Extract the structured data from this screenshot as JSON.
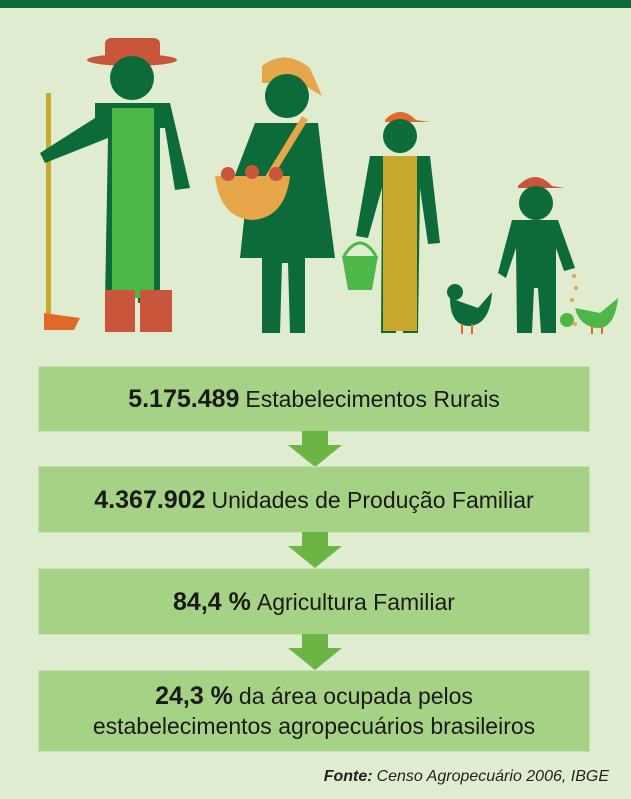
{
  "steps": [
    {
      "number": "5.175.489",
      "text": "Estabelecimentos Rurais"
    },
    {
      "number": "4.367.902",
      "text": "Unidades de Produção Familiar"
    },
    {
      "number": "84,4 %",
      "text": "Agricultura Familiar"
    },
    {
      "number": "24,3 %",
      "text": "da área ocupada pelos estabelecimentos agropecuários brasileiros"
    }
  ],
  "source": {
    "label": "Fonte:",
    "text": "Censo Agropecuário 2006, IBGE"
  }
}
